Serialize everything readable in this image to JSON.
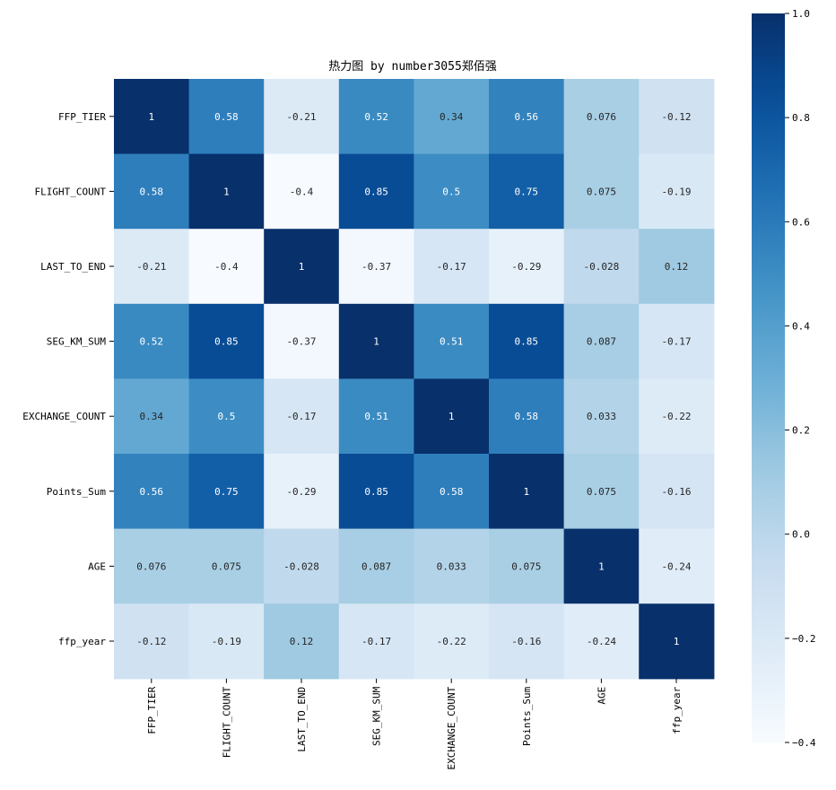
{
  "chart_data": {
    "type": "heatmap",
    "title": "热力图 by number3055郑佰强",
    "labels": [
      "FFP_TIER",
      "FLIGHT_COUNT",
      "LAST_TO_END",
      "SEG_KM_SUM",
      "EXCHANGE_COUNT",
      "Points_Sum",
      "AGE",
      "ffp_year"
    ],
    "values": [
      [
        1,
        0.58,
        -0.21,
        0.52,
        0.34,
        0.56,
        0.076,
        -0.12
      ],
      [
        0.58,
        1,
        -0.4,
        0.85,
        0.5,
        0.75,
        0.075,
        -0.19
      ],
      [
        -0.21,
        -0.4,
        1,
        -0.37,
        -0.17,
        -0.29,
        -0.028,
        0.12
      ],
      [
        0.52,
        0.85,
        -0.37,
        1,
        0.51,
        0.85,
        0.087,
        -0.17
      ],
      [
        0.34,
        0.5,
        -0.17,
        0.51,
        1,
        0.58,
        0.033,
        -0.22
      ],
      [
        0.56,
        0.75,
        -0.29,
        0.85,
        0.58,
        1,
        0.075,
        -0.16
      ],
      [
        0.076,
        0.075,
        -0.028,
        0.087,
        0.033,
        0.075,
        1,
        -0.24
      ],
      [
        -0.12,
        -0.19,
        0.12,
        -0.17,
        -0.22,
        -0.16,
        -0.24,
        1
      ]
    ],
    "cell_labels": [
      [
        "1",
        "0.58",
        "-0.21",
        "0.52",
        "0.34",
        "0.56",
        "0.076",
        "-0.12"
      ],
      [
        "0.58",
        "1",
        "-0.4",
        "0.85",
        "0.5",
        "0.75",
        "0.075",
        "-0.19"
      ],
      [
        "-0.21",
        "-0.4",
        "1",
        "-0.37",
        "-0.17",
        "-0.29",
        "-0.028",
        "0.12"
      ],
      [
        "0.52",
        "0.85",
        "-0.37",
        "1",
        "0.51",
        "0.85",
        "0.087",
        "-0.17"
      ],
      [
        "0.34",
        "0.5",
        "-0.17",
        "0.51",
        "1",
        "0.58",
        "0.033",
        "-0.22"
      ],
      [
        "0.56",
        "0.75",
        "-0.29",
        "0.85",
        "0.58",
        "1",
        "0.075",
        "-0.16"
      ],
      [
        "0.076",
        "0.075",
        "-0.028",
        "0.087",
        "0.033",
        "0.075",
        "1",
        "-0.24"
      ],
      [
        "-0.12",
        "-0.19",
        "0.12",
        "-0.17",
        "-0.22",
        "-0.16",
        "-0.24",
        "1"
      ]
    ],
    "colormap": "Blues",
    "vmin": -0.4,
    "vmax": 1.0,
    "colorbar_ticks": [
      1.0,
      0.8,
      0.6,
      0.4,
      0.2,
      0.0,
      -0.2,
      -0.4
    ],
    "colorbar_tick_labels": [
      "1.0",
      "0.8",
      "0.6",
      "0.4",
      "0.2",
      "0.0",
      "−0.2",
      "−0.4"
    ],
    "grid": false
  }
}
